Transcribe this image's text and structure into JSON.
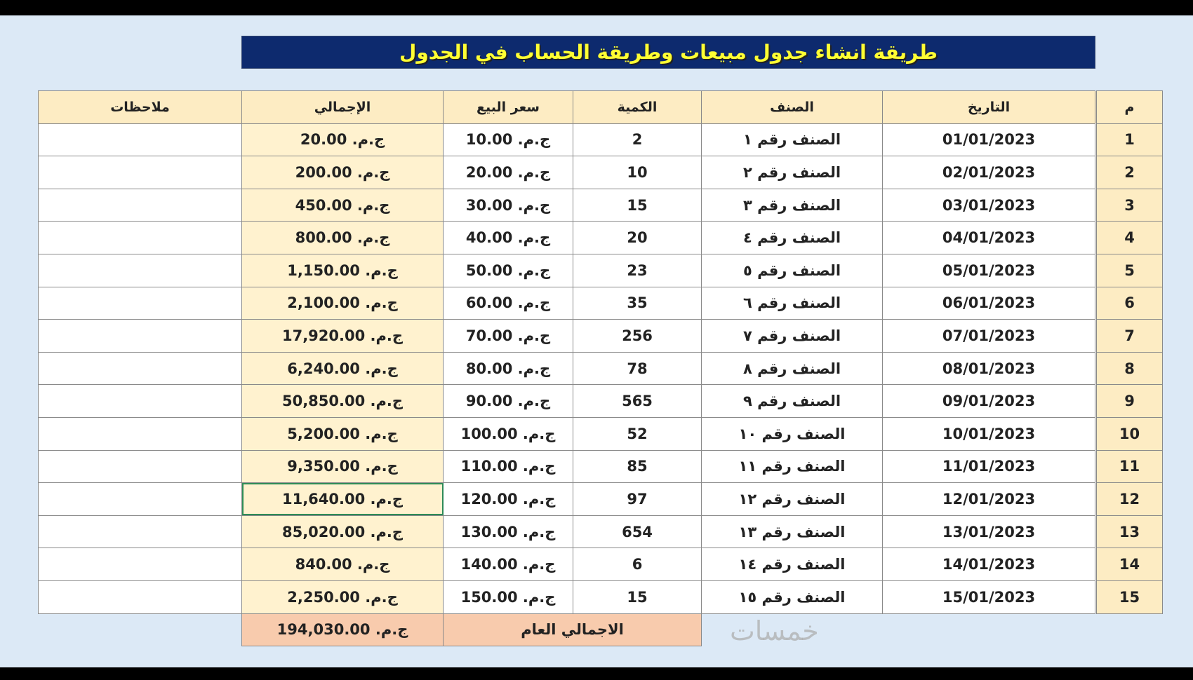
{
  "title": "طريقة انشاء جدول مبيعات وطريقة الحساب في الجدول",
  "headers": {
    "notes": "ملاحظات",
    "total": "الإجمالي",
    "price": "سعر البيع",
    "qty": "الكمية",
    "item": "الصنف",
    "date": "التاريخ",
    "num": "م"
  },
  "rows": [
    {
      "num": "1",
      "date": "01/01/2023",
      "item": "الصنف رقم ١",
      "qty": "2",
      "price": "ج.م. 10.00",
      "total": "ج.م. 20.00",
      "notes": ""
    },
    {
      "num": "2",
      "date": "02/01/2023",
      "item": "الصنف رقم ٢",
      "qty": "10",
      "price": "ج.م. 20.00",
      "total": "ج.م. 200.00",
      "notes": ""
    },
    {
      "num": "3",
      "date": "03/01/2023",
      "item": "الصنف رقم ٣",
      "qty": "15",
      "price": "ج.م. 30.00",
      "total": "ج.م. 450.00",
      "notes": ""
    },
    {
      "num": "4",
      "date": "04/01/2023",
      "item": "الصنف رقم ٤",
      "qty": "20",
      "price": "ج.م. 40.00",
      "total": "ج.م. 800.00",
      "notes": ""
    },
    {
      "num": "5",
      "date": "05/01/2023",
      "item": "الصنف رقم ٥",
      "qty": "23",
      "price": "ج.م. 50.00",
      "total": "ج.م. 1,150.00",
      "notes": ""
    },
    {
      "num": "6",
      "date": "06/01/2023",
      "item": "الصنف رقم ٦",
      "qty": "35",
      "price": "ج.م. 60.00",
      "total": "ج.م. 2,100.00",
      "notes": ""
    },
    {
      "num": "7",
      "date": "07/01/2023",
      "item": "الصنف رقم ٧",
      "qty": "256",
      "price": "ج.م. 70.00",
      "total": "ج.م. 17,920.00",
      "notes": ""
    },
    {
      "num": "8",
      "date": "08/01/2023",
      "item": "الصنف رقم ٨",
      "qty": "78",
      "price": "ج.م. 80.00",
      "total": "ج.م. 6,240.00",
      "notes": ""
    },
    {
      "num": "9",
      "date": "09/01/2023",
      "item": "الصنف رقم ٩",
      "qty": "565",
      "price": "ج.م. 90.00",
      "total": "ج.م. 50,850.00",
      "notes": ""
    },
    {
      "num": "10",
      "date": "10/01/2023",
      "item": "الصنف رقم ١٠",
      "qty": "52",
      "price": "ج.م. 100.00",
      "total": "ج.م. 5,200.00",
      "notes": ""
    },
    {
      "num": "11",
      "date": "11/01/2023",
      "item": "الصنف رقم ١١",
      "qty": "85",
      "price": "ج.م. 110.00",
      "total": "ج.م. 9,350.00",
      "notes": ""
    },
    {
      "num": "12",
      "date": "12/01/2023",
      "item": "الصنف رقم ١٢",
      "qty": "97",
      "price": "ج.م. 120.00",
      "total": "ج.م. 11,640.00",
      "notes": ""
    },
    {
      "num": "13",
      "date": "13/01/2023",
      "item": "الصنف رقم ١٣",
      "qty": "654",
      "price": "ج.م. 130.00",
      "total": "ج.م. 85,020.00",
      "notes": ""
    },
    {
      "num": "14",
      "date": "14/01/2023",
      "item": "الصنف رقم ١٤",
      "qty": "6",
      "price": "ج.م. 140.00",
      "total": "ج.م. 840.00",
      "notes": ""
    },
    {
      "num": "15",
      "date": "15/01/2023",
      "item": "الصنف رقم ١٥",
      "qty": "15",
      "price": "ج.م. 150.00",
      "total": "ج.م. 2,250.00",
      "notes": ""
    }
  ],
  "grand_total": {
    "label": "الاجمالي العام",
    "value": "ج.م. 194,030.00"
  },
  "selected_row": 12,
  "watermark": "خمسات",
  "colors": {
    "title_bg": "#0d2a6e",
    "title_text": "#ffff33",
    "header_bg": "#fdecc3",
    "total_col_bg": "#fff2cf",
    "grand_total_bg": "#f8cbad",
    "page_bg": "#dce9f6"
  }
}
